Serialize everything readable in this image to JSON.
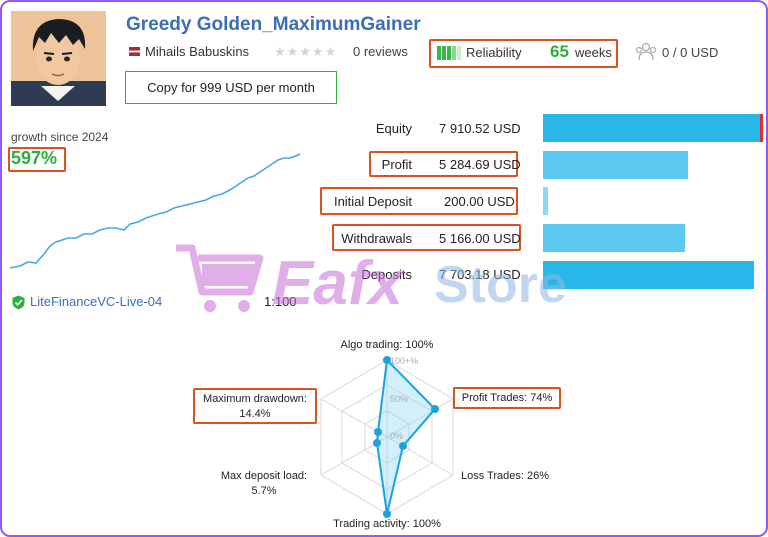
{
  "header": {
    "title": "Greedy Golden_MaximumGainer",
    "author": "Mihails Babuskins",
    "reviews": "0 reviews",
    "reliability_label": "Reliability",
    "reliability_weeks": "65",
    "weeks_label": "weeks",
    "subscribers": "0 / 0 USD",
    "copy_button": "Copy for 999 USD per month"
  },
  "growth": {
    "label": "growth since 2024",
    "value": "597%"
  },
  "account": {
    "server": "LiteFinanceVC-Live-04",
    "leverage": "1:100"
  },
  "metrics": [
    {
      "label": "Equity",
      "value": "7 910.52 USD",
      "bar_fraction": 1.0,
      "color": "#29b6e8"
    },
    {
      "label": "Profit",
      "value": "5 284.69 USD",
      "bar_fraction": 0.668,
      "color": "#5ccaf0"
    },
    {
      "label": "Initial Deposit",
      "value": "200.00 USD",
      "bar_fraction": 0.025,
      "color": "#88d9f4"
    },
    {
      "label": "Withdrawals",
      "value": "5 166.00 USD",
      "bar_fraction": 0.653,
      "color": "#5ccaf0"
    },
    {
      "label": "Deposits",
      "value": "7 703.18 USD",
      "bar_fraction": 0.974,
      "color": "#29b6e8"
    }
  ],
  "radar": {
    "algo_trading": "Algo trading: 100%",
    "profit_trades": "Profit Trades: 74%",
    "loss_trades": "Loss Trades: 26%",
    "trading_activity": "Trading activity: 100%",
    "max_deposit_load_label": "Max deposit load:",
    "max_deposit_load_value": "5.7%",
    "max_drawdown_label": "Maximum drawdown:",
    "max_drawdown_value": "14.4%",
    "ring_100": "100+%",
    "ring_50": "50%",
    "ring_0": "0%"
  },
  "watermark": {
    "brand": "Eafx",
    "store": "Store"
  },
  "colors": {
    "accent_blue": "#3b6fb3",
    "green": "#2eae3f",
    "highlight": "#d9531e",
    "bar_blue": "#29b6e8"
  }
}
